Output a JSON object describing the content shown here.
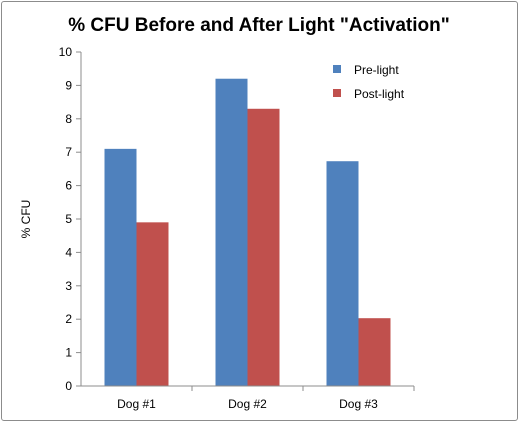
{
  "chart_data": {
    "type": "bar",
    "title": "% CFU Before and After Light \"Activation\"",
    "xlabel": "",
    "ylabel": "% CFU",
    "categories": [
      "Dog #1",
      "Dog #2",
      "Dog #3"
    ],
    "ylim": [
      0,
      10
    ],
    "yticks": [
      0,
      1,
      2,
      3,
      4,
      5,
      6,
      7,
      8,
      9,
      10
    ],
    "grid": false,
    "legend_position": "top-right",
    "series": [
      {
        "name": "Pre-light",
        "color": "#4f81bd",
        "values": [
          7.1,
          9.2,
          6.73
        ]
      },
      {
        "name": "Post-light",
        "color": "#c0504d",
        "values": [
          4.9,
          8.3,
          2.03
        ]
      }
    ]
  }
}
